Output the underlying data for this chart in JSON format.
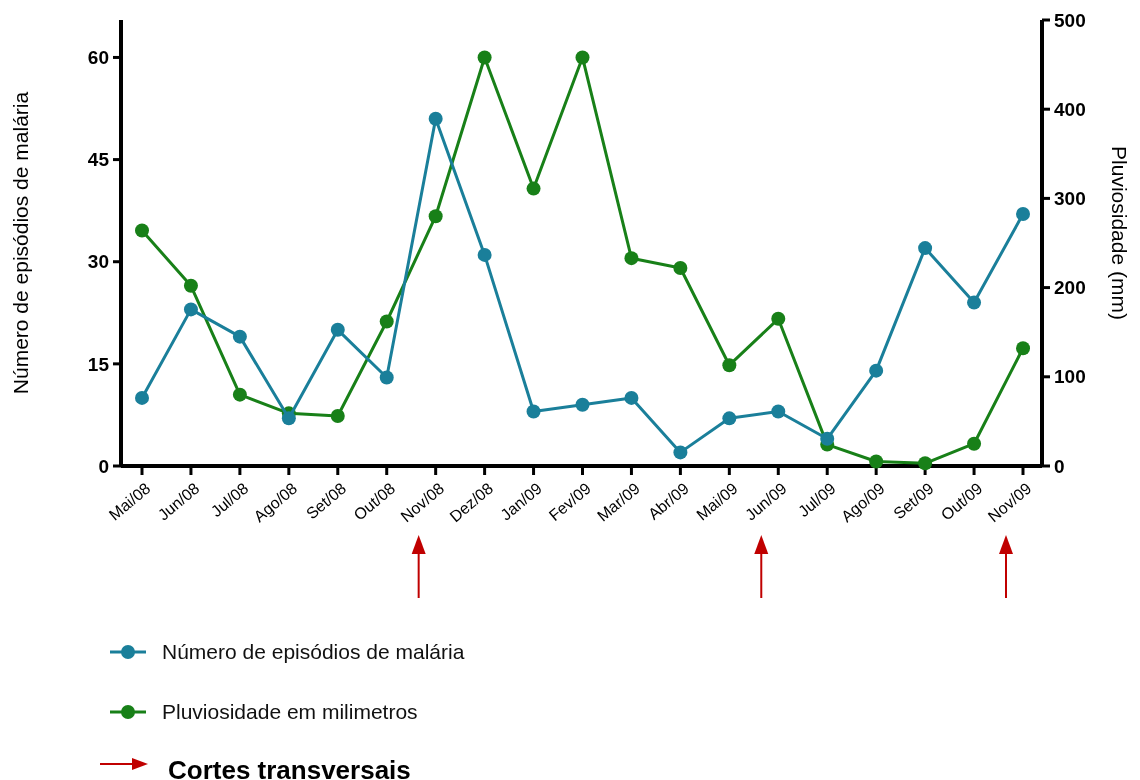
{
  "chart_data": {
    "type": "line",
    "categories": [
      "Mai/08",
      "Jun/08",
      "Jul/08",
      "Ago/08",
      "Set/08",
      "Out/08",
      "Nov/08",
      "Dez/08",
      "Jan/09",
      "Fev/09",
      "Mar/09",
      "Abr/09",
      "Mai/09",
      "Jun/09",
      "Jul/09",
      "Ago/09",
      "Set/09",
      "Out/09",
      "Nov/09"
    ],
    "ylabel": "Número de episódios de malária",
    "y2label": "Pluviosidade (mm)",
    "ylim": [
      0,
      65.5
    ],
    "yticks": [
      0,
      15,
      30,
      45,
      60
    ],
    "y2lim": [
      0,
      500
    ],
    "y2ticks": [
      0,
      100,
      200,
      300,
      400,
      500
    ],
    "series": [
      {
        "name": "Número de episódios de malária",
        "color": "#1a7f9a",
        "values": [
          10,
          23,
          19,
          7,
          20,
          13,
          51,
          31,
          8,
          9,
          10,
          2,
          7,
          8,
          4,
          14,
          32,
          24,
          37
        ]
      },
      {
        "name": "Pluviosidade em milimetros",
        "color": "#188018",
        "axis": "y2",
        "values": [
          264,
          202,
          80,
          59,
          56,
          162,
          280,
          458,
          311,
          458,
          233,
          222,
          113,
          165,
          24,
          5,
          3,
          25,
          132
        ]
      }
    ],
    "annotations": [
      "Cortes transversais"
    ],
    "marker": "circle",
    "line_style": "solid",
    "grid": false,
    "legend": "bottom left"
  }
}
